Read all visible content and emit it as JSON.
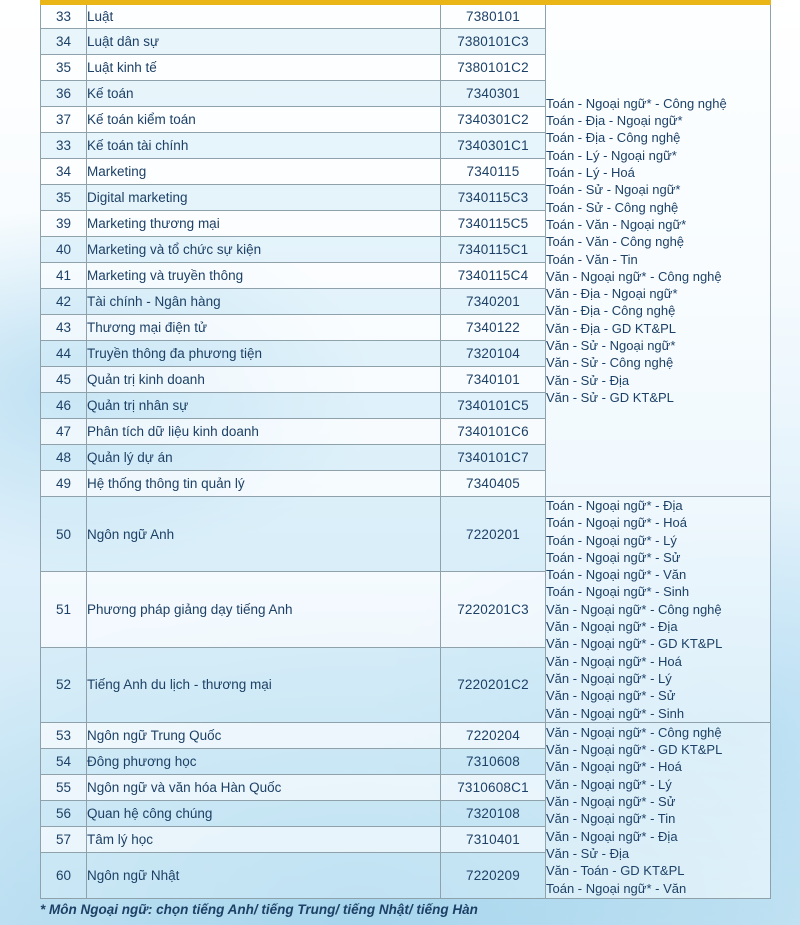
{
  "colors": {
    "accent_gold": "#e9b517",
    "text_navy": "#1d4166",
    "border_gray": "#8fa1ab"
  },
  "footnote": "* Môn Ngoại ngữ: chọn tiếng Anh/ tiếng Trung/ tiếng Nhật/ tiếng Hàn",
  "table": {
    "rows": [
      {
        "no": "33",
        "name": "Luật",
        "code": "7380101"
      },
      {
        "no": "34",
        "name": "Luật dân sự",
        "code": "7380101C3"
      },
      {
        "no": "35",
        "name": "Luật kinh tế",
        "code": "7380101C2"
      },
      {
        "no": "36",
        "name": "Kế toán",
        "code": "7340301"
      },
      {
        "no": "37",
        "name": "Kế toán kiểm toán",
        "code": "7340301C2"
      },
      {
        "no": "33",
        "name": "Kế toán tài chính",
        "code": "7340301C1"
      },
      {
        "no": "34",
        "name": "Marketing",
        "code": "7340115"
      },
      {
        "no": "35",
        "name": "Digital marketing",
        "code": "7340115C3"
      },
      {
        "no": "39",
        "name": "Marketing thương mại",
        "code": "7340115C5"
      },
      {
        "no": "40",
        "name": "Marketing và tổ chức sự kiện",
        "code": "7340115C1"
      },
      {
        "no": "41",
        "name": "Marketing và truyền thông",
        "code": "7340115C4"
      },
      {
        "no": "42",
        "name": "Tài chính - Ngân hàng",
        "code": "7340201"
      },
      {
        "no": "43",
        "name": "Thương mại điện tử",
        "code": "7340122"
      },
      {
        "no": "44",
        "name": "Truyền thông đa phương tiện",
        "code": "7320104"
      },
      {
        "no": "45",
        "name": "Quản trị kinh doanh",
        "code": "7340101"
      },
      {
        "no": "46",
        "name": "Quản trị nhân sự",
        "code": "7340101C5"
      },
      {
        "no": "47",
        "name": "Phân tích dữ liệu kinh doanh",
        "code": "7340101C6"
      },
      {
        "no": "48",
        "name": "Quản lý dự án",
        "code": "7340101C7"
      },
      {
        "no": "49",
        "name": "Hệ thống thông tin quản lý",
        "code": "7340405"
      },
      {
        "no": "50",
        "name": "Ngôn ngữ Anh",
        "code": "7220201"
      },
      {
        "no": "51",
        "name": "Phương pháp giảng dạy tiếng Anh",
        "code": "7220201C3"
      },
      {
        "no": "52",
        "name": "Tiếng Anh du lịch - thương mại",
        "code": "7220201C2"
      },
      {
        "no": "53",
        "name": "Ngôn ngữ Trung Quốc",
        "code": "7220204"
      },
      {
        "no": "54",
        "name": "Đông phương học",
        "code": "7310608"
      },
      {
        "no": "55",
        "name": "Ngôn ngữ và văn hóa Hàn Quốc",
        "code": "7310608C1"
      },
      {
        "no": "56",
        "name": "Quan hệ công chúng",
        "code": "7320108"
      },
      {
        "no": "57",
        "name": "Tâm lý học",
        "code": "7310401"
      },
      {
        "no": "60",
        "name": "Ngôn ngữ Nhật",
        "code": "7220209"
      }
    ],
    "combo_blocks": [
      {
        "start": 0,
        "span": 19,
        "lines": [
          "Toán - Ngoại ngữ* - Công nghệ",
          "Toán - Địa - Ngoại ngữ*",
          "Toán - Địa - Công nghệ",
          "Toán - Lý - Ngoại ngữ*",
          "Toán - Lý - Hoá",
          "Toán - Sử - Ngoại ngữ*",
          "Toán - Sử - Công nghệ",
          "Toán - Văn - Ngoại ngữ*",
          "Toán - Văn - Công nghệ",
          "Toán - Văn - Tin",
          "Văn - Ngoại ngữ* - Công nghệ",
          "Văn - Địa - Ngoại ngữ*",
          "Văn - Địa - Công nghệ",
          "Văn - Địa - GD KT&PL",
          "Văn - Sử - Ngoại ngữ*",
          "Văn - Sử - Công nghệ",
          "Văn - Sử - Địa",
          "Văn - Sử - GD KT&PL"
        ]
      },
      {
        "start": 19,
        "span": 3,
        "lines": [
          "Toán - Ngoại ngữ* - Địa",
          "Toán - Ngoại ngữ* - Hoá",
          "Toán - Ngoại ngữ* - Lý",
          "Toán - Ngoại ngữ* - Sử",
          "Toán - Ngoại ngữ* - Văn",
          "Toán - Ngoại ngữ* - Sinh",
          "Văn - Ngoại ngữ* - Công nghệ",
          "Văn - Ngoại ngữ* - Địa",
          "Văn - Ngoại ngữ* - GD KT&PL",
          "Văn - Ngoại ngữ* - Hoá",
          "Văn - Ngoại ngữ* - Lý",
          "Văn - Ngoại ngữ* - Sử",
          "Văn - Ngoại ngữ* - Sinh"
        ]
      },
      {
        "start": 22,
        "span": 6,
        "lines": [
          "Văn - Ngoại ngữ* - Công nghệ",
          "Văn - Ngoại ngữ* - GD KT&PL",
          "Văn - Ngoại ngữ* - Hoá",
          "Văn - Ngoại ngữ* - Lý",
          "Văn - Ngoại ngữ* - Sử",
          "Văn - Ngoại ngữ* - Tin",
          "Văn - Ngoại ngữ* - Địa",
          "Văn - Sử - Địa",
          "Văn - Toán - GD KT&PL",
          "Toán - Ngoại ngữ* - Văn"
        ]
      }
    ]
  }
}
